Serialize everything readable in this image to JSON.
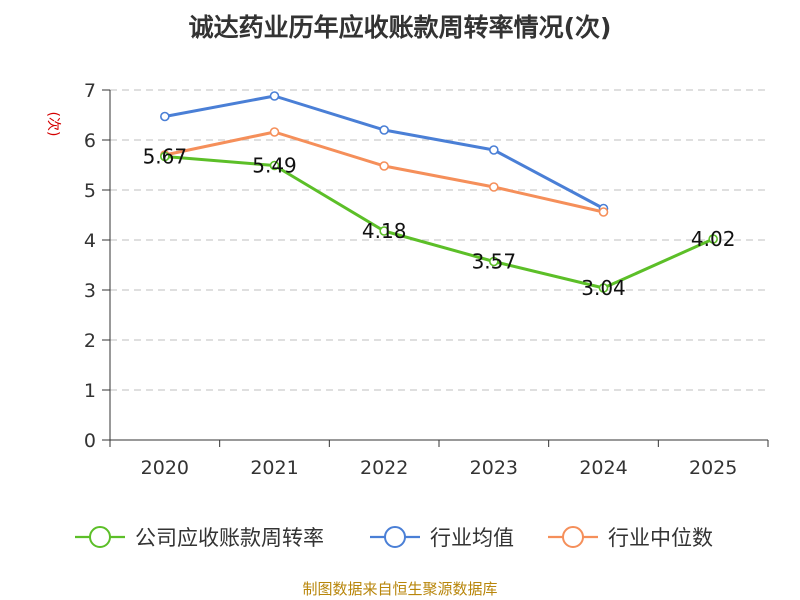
{
  "chart_data": {
    "type": "line",
    "title": "诚达药业历年应收账款周转率情况(次)",
    "ylabel": "(次)",
    "xlabel": "",
    "categories": [
      "2020",
      "2021",
      "2022",
      "2023",
      "2024",
      "2025"
    ],
    "ylim": [
      0,
      7
    ],
    "yticks": [
      "0",
      "1",
      "2",
      "3",
      "4",
      "5",
      "6",
      "7"
    ],
    "grid": true,
    "legend_position": "bottom",
    "series": [
      {
        "name": "公司应收账款周转率",
        "color": "#5cbf28",
        "values": [
          5.67,
          5.49,
          4.18,
          3.57,
          3.04,
          4.02
        ],
        "labels": [
          "5.67",
          "5.49",
          "4.18",
          "3.57",
          "3.04",
          "4.02"
        ],
        "show_labels": true
      },
      {
        "name": "行业均值",
        "color": "#4a7fd6",
        "values": [
          6.47,
          6.88,
          6.2,
          5.8,
          4.63,
          null
        ],
        "show_labels": false
      },
      {
        "name": "行业中位数",
        "color": "#f58f5a",
        "values": [
          5.7,
          6.16,
          5.48,
          5.06,
          4.56,
          null
        ],
        "show_labels": false
      }
    ]
  },
  "source": "制图数据来自恒生聚源数据库"
}
